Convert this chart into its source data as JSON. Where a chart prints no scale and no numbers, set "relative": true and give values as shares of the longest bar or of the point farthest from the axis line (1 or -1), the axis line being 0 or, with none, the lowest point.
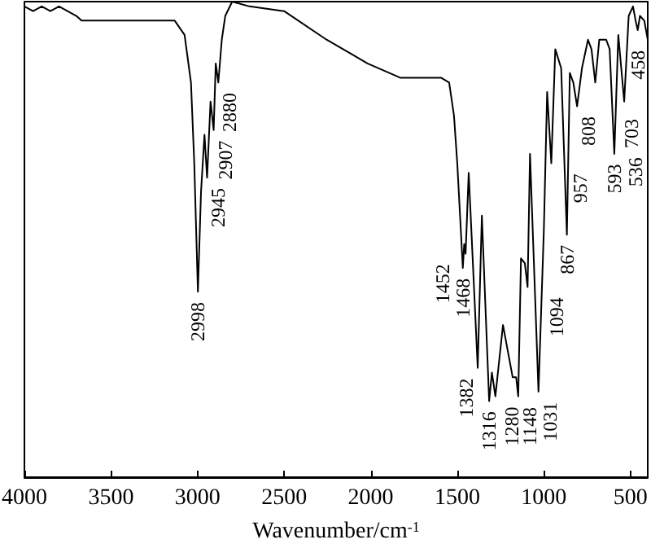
{
  "chart_data": {
    "type": "line",
    "xlabel": "Wavenumber/cm$^{-1}$",
    "xlim": [
      4000,
      400
    ],
    "xticks": [
      4000,
      3500,
      3000,
      2500,
      2000,
      1500,
      1000,
      500
    ],
    "relative": true,
    "tick_labels": "x",
    "marker": "none",
    "color": "#000000",
    "x": [
      4000,
      3950,
      3900,
      3850,
      3800,
      3700,
      3670,
      3500,
      3300,
      3132,
      3075,
      3038,
      3019,
      2998,
      2980,
      2960,
      2945,
      2925,
      2907,
      2895,
      2880,
      2860,
      2840,
      2800,
      2700,
      2500,
      2255,
      2113,
      2019,
      1830,
      1594,
      1547,
      1519,
      1500,
      1468,
      1460,
      1452,
      1434,
      1382,
      1358,
      1316,
      1300,
      1280,
      1236,
      1180,
      1160,
      1148,
      1132,
      1110,
      1094,
      1080,
      1031,
      1000,
      981,
      957,
      934,
      900,
      867,
      850,
      830,
      808,
      780,
      745,
      725,
      703,
      680,
      640,
      620,
      593,
      570,
      536,
      510,
      485,
      470,
      458,
      445,
      420,
      400
    ],
    "values": [
      0.99,
      0.98,
      0.99,
      0.98,
      0.99,
      0.97,
      0.96,
      0.96,
      0.96,
      0.96,
      0.93,
      0.83,
      0.66,
      0.39,
      0.6,
      0.72,
      0.63,
      0.79,
      0.73,
      0.87,
      0.83,
      0.92,
      0.97,
      1.0,
      0.99,
      0.98,
      0.92,
      0.89,
      0.87,
      0.84,
      0.84,
      0.83,
      0.76,
      0.66,
      0.44,
      0.49,
      0.47,
      0.64,
      0.23,
      0.55,
      0.16,
      0.22,
      0.17,
      0.32,
      0.21,
      0.21,
      0.17,
      0.46,
      0.45,
      0.4,
      0.68,
      0.18,
      0.52,
      0.81,
      0.66,
      0.9,
      0.86,
      0.51,
      0.85,
      0.83,
      0.78,
      0.86,
      0.92,
      0.9,
      0.83,
      0.92,
      0.92,
      0.9,
      0.68,
      0.93,
      0.79,
      0.97,
      0.99,
      0.96,
      0.94,
      0.97,
      0.96,
      0.92
    ],
    "annotations": [
      {
        "text": "2998",
        "x": 2998,
        "y": 0.39
      },
      {
        "text": "2945",
        "x": 2945,
        "y": 0.63
      },
      {
        "text": "2907",
        "x": 2907,
        "y": 0.73
      },
      {
        "text": "2880",
        "x": 2880,
        "y": 0.83
      },
      {
        "text": "1468",
        "x": 1468,
        "y": 0.44
      },
      {
        "text": "1452",
        "x": 1452,
        "y": 0.47
      },
      {
        "text": "1382",
        "x": 1382,
        "y": 0.23
      },
      {
        "text": "1316",
        "x": 1316,
        "y": 0.16
      },
      {
        "text": "1280",
        "x": 1280,
        "y": 0.17
      },
      {
        "text": "1148",
        "x": 1148,
        "y": 0.17
      },
      {
        "text": "1094",
        "x": 1094,
        "y": 0.4
      },
      {
        "text": "1031",
        "x": 1031,
        "y": 0.18
      },
      {
        "text": "957",
        "x": 957,
        "y": 0.66
      },
      {
        "text": "867",
        "x": 867,
        "y": 0.51
      },
      {
        "text": "808",
        "x": 808,
        "y": 0.78
      },
      {
        "text": "703",
        "x": 703,
        "y": 0.83
      },
      {
        "text": "593",
        "x": 593,
        "y": 0.68
      },
      {
        "text": "536",
        "x": 536,
        "y": 0.79
      },
      {
        "text": "458",
        "x": 458,
        "y": 0.94
      }
    ]
  }
}
